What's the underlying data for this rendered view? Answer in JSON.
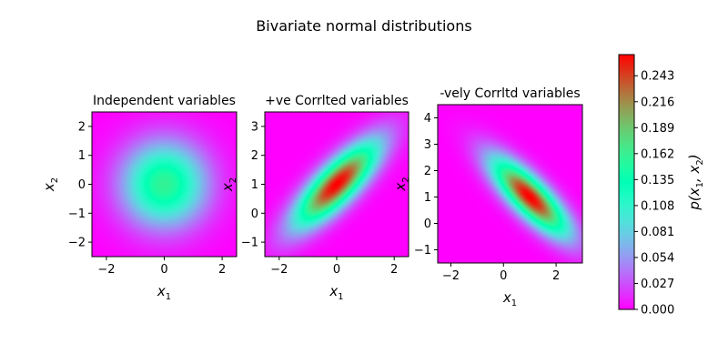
{
  "figure": {
    "suptitle": "Bivariate normal distributions"
  },
  "chart_data": [
    {
      "type": "heatmap",
      "title": "Independent variables",
      "xlabel": "x1",
      "ylabel": "x2",
      "xlim": [
        -2.5,
        2.5
      ],
      "ylim": [
        -2.5,
        2.5
      ],
      "xticks": [
        -2,
        0,
        2
      ],
      "yticks": [
        -2,
        -1,
        0,
        1,
        2
      ],
      "mean": [
        0,
        0
      ],
      "covariance": [
        [
          1,
          0
        ],
        [
          0,
          1
        ]
      ],
      "colormap": "rainbow"
    },
    {
      "type": "heatmap",
      "title": "+ve Corrlted variables",
      "xlabel": "x1",
      "ylabel": "x2",
      "xlim": [
        -2.5,
        2.5
      ],
      "ylim": [
        -1.5,
        3.5
      ],
      "xticks": [
        -2,
        0,
        2
      ],
      "yticks": [
        -1,
        0,
        1,
        2,
        3
      ],
      "mean": [
        0,
        1
      ],
      "covariance": [
        [
          1,
          0.8
        ],
        [
          0.8,
          1
        ]
      ],
      "colormap": "rainbow"
    },
    {
      "type": "heatmap",
      "title": "-vely Corrltd variables",
      "xlabel": "x1",
      "ylabel": "x2",
      "xlim": [
        -2.5,
        3.0
      ],
      "ylim": [
        -1.5,
        4.5
      ],
      "xticks": [
        -2,
        0,
        2
      ],
      "yticks": [
        -1,
        0,
        1,
        2,
        3,
        4
      ],
      "mean": [
        1,
        1
      ],
      "covariance": [
        [
          1,
          -0.8
        ],
        [
          -0.8,
          1
        ]
      ],
      "colormap": "rainbow"
    }
  ],
  "colorbar": {
    "label": "p(x1, x2)",
    "min": 0.0,
    "max": 0.265,
    "ticks": [
      "0.000",
      "0.027",
      "0.054",
      "0.081",
      "0.108",
      "0.135",
      "0.162",
      "0.189",
      "0.216",
      "0.243"
    ],
    "colormap": "rainbow"
  }
}
